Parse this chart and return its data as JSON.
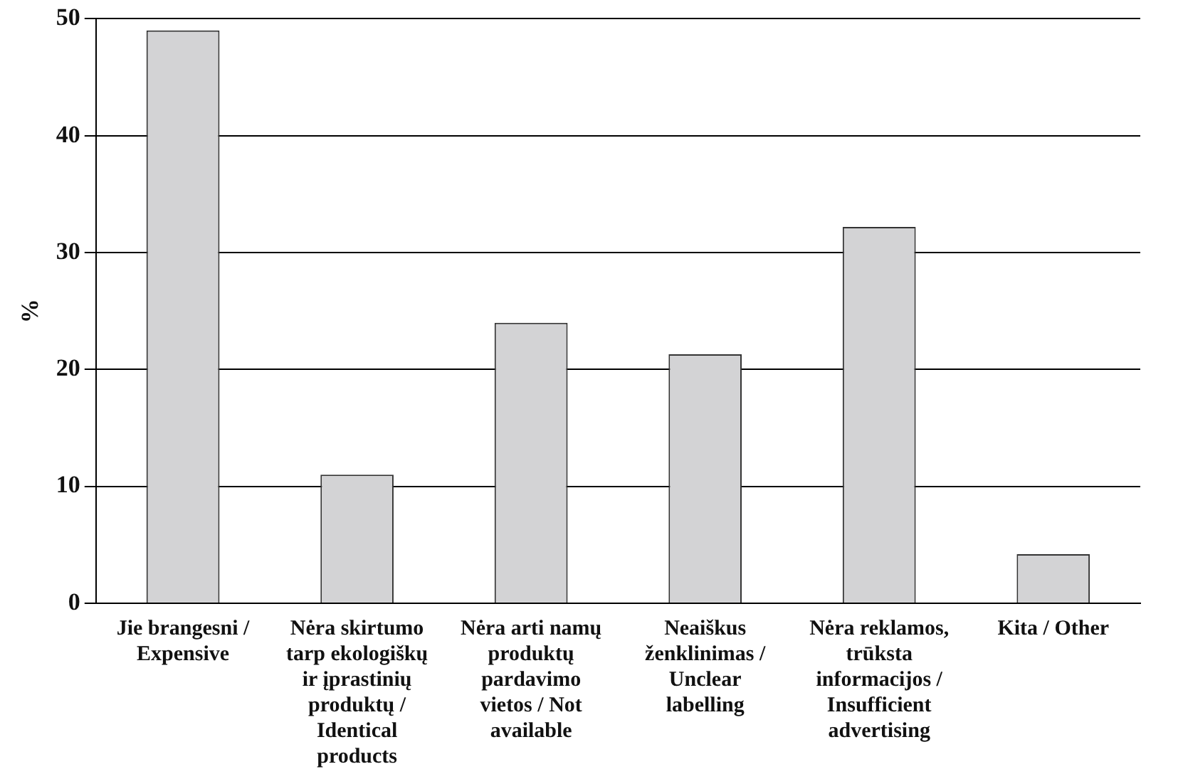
{
  "chart_data": {
    "type": "bar",
    "ylabel": "%",
    "categories": [
      "Jie brangesni / Expensive",
      "Nėra skirtumo tarp ekologiškų ir įprastinių produktų / Identical products",
      "Nėra arti namų produktų pardavimo vietos / Not available",
      "Neaiškus ženklinimas / Unclear labelling",
      "Nėra reklamos, trūksta informacijos / Insufficient advertising",
      "Kita / Other"
    ],
    "values": [
      49,
      11,
      24,
      21.3,
      32.2,
      4.2
    ],
    "color": "#d3d3d5",
    "ylim": [
      0,
      50
    ],
    "yticks": [
      0,
      10,
      20,
      30,
      40,
      50
    ],
    "grid": "y"
  }
}
